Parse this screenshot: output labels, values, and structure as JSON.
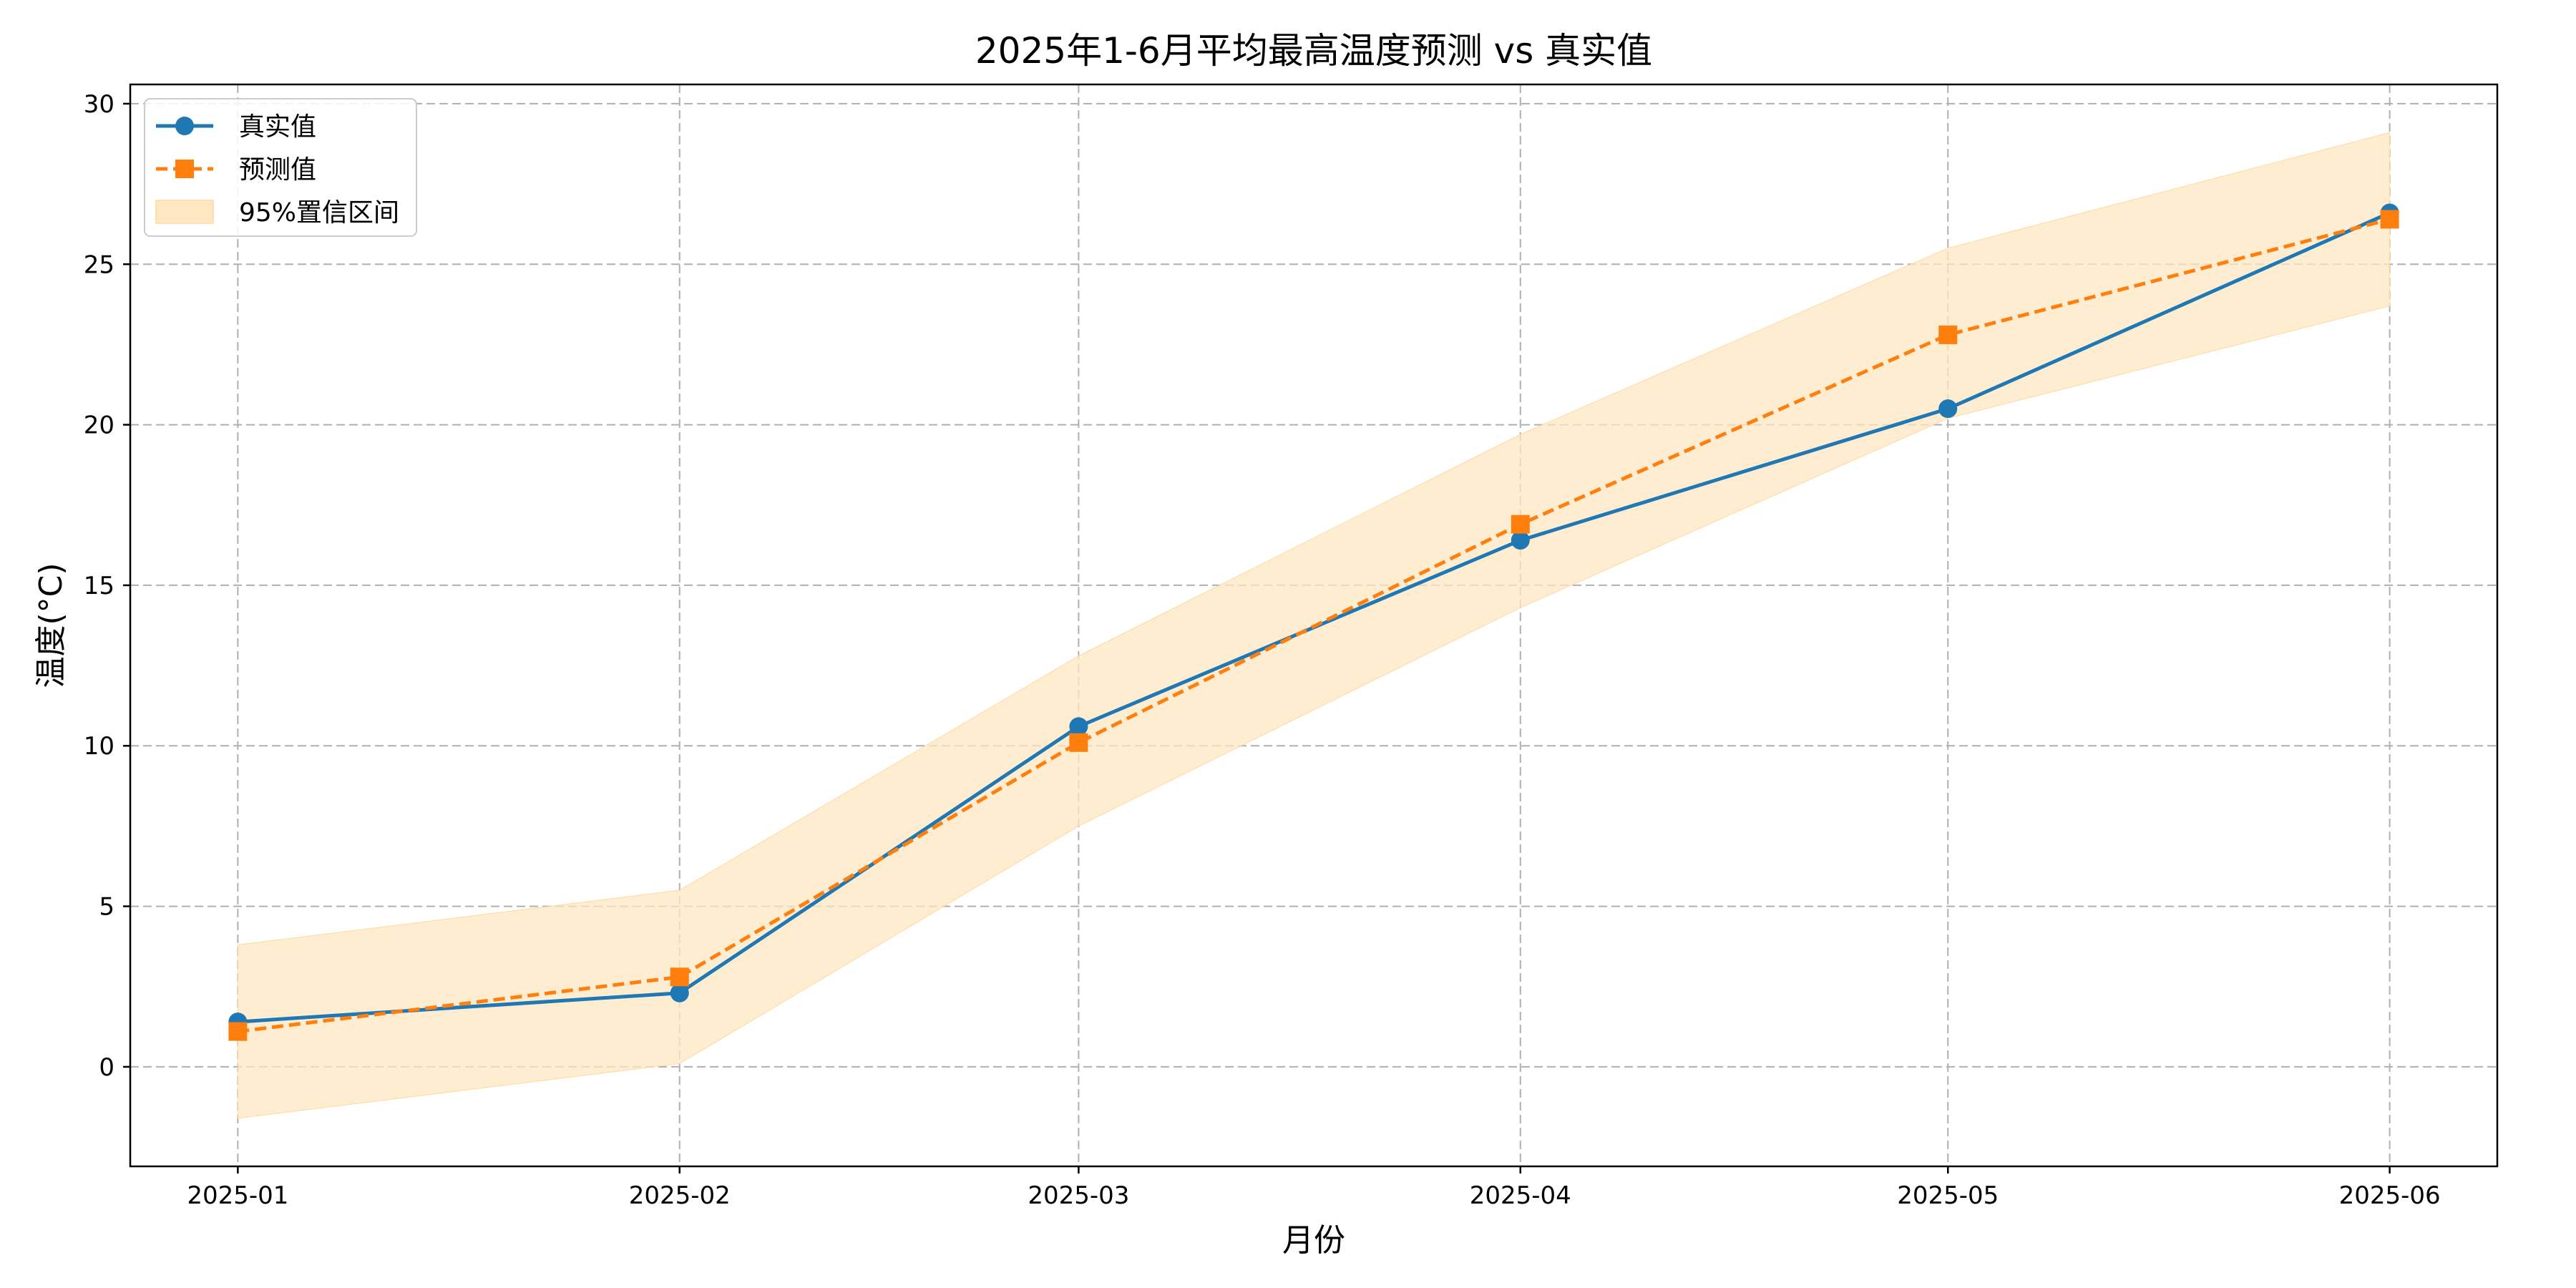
{
  "chart_data": {
    "type": "line",
    "title": "2025年1-6月平均最高温度预测 vs 真实值",
    "xlabel": "月份",
    "ylabel": "温度(°C)",
    "categories": [
      "2025-01",
      "2025-02",
      "2025-03",
      "2025-04",
      "2025-05",
      "2025-06"
    ],
    "x_positions": [
      "2025-01-01",
      "2025-02-01",
      "2025-03-01",
      "2025-04-01",
      "2025-05-01",
      "2025-06-01"
    ],
    "ylim": [
      -3.1,
      30.6
    ],
    "yticks": [
      0,
      5,
      10,
      15,
      20,
      25,
      30
    ],
    "grid": true,
    "legend_position": "top-left",
    "series": [
      {
        "name": "真实值",
        "style": "solid",
        "marker": "circle",
        "color": "#1f77b4",
        "values": [
          1.4,
          2.3,
          10.6,
          16.4,
          20.5,
          26.6
        ]
      },
      {
        "name": "预测值",
        "style": "dashed",
        "marker": "square",
        "color": "#ff7f0e",
        "values": [
          1.1,
          2.8,
          10.1,
          16.9,
          22.8,
          26.4
        ]
      }
    ],
    "confidence_band": {
      "name": "95%置信区间",
      "color": "#ffe7c2",
      "lower": [
        -1.6,
        0.1,
        7.5,
        14.3,
        20.2,
        23.7
      ],
      "upper": [
        3.8,
        5.5,
        12.8,
        19.7,
        25.5,
        29.1
      ]
    }
  }
}
